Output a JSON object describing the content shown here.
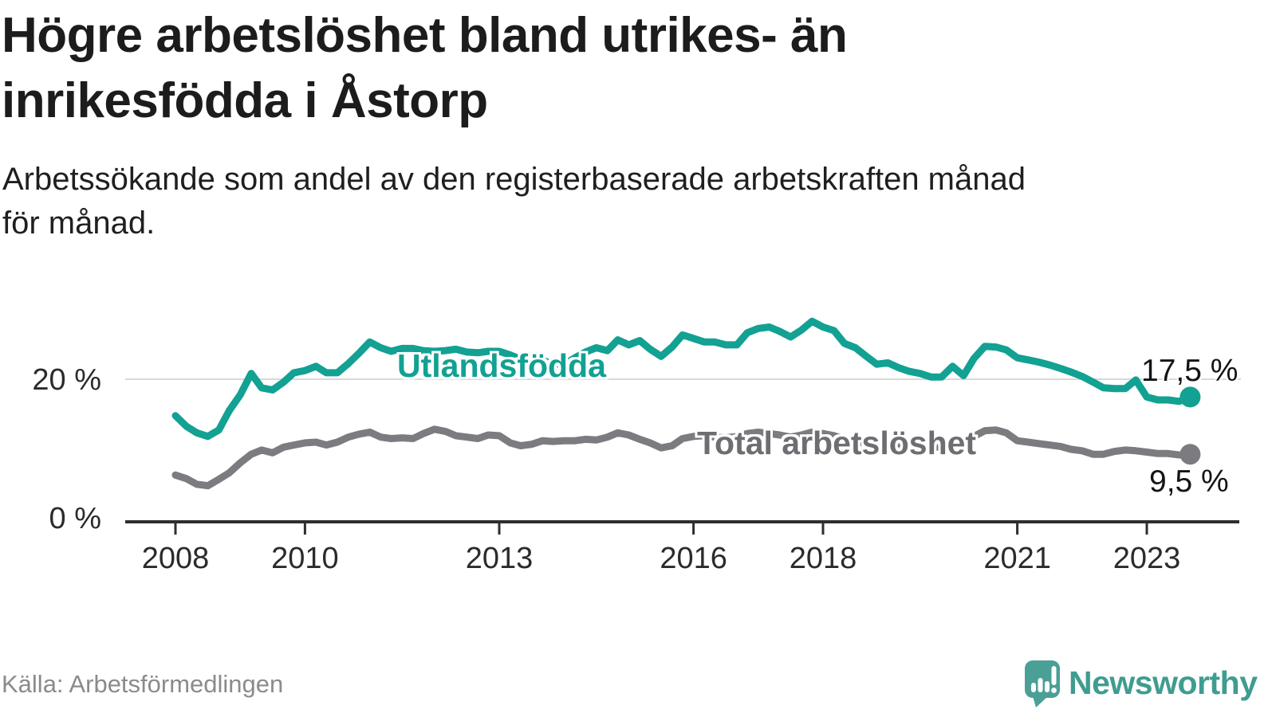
{
  "header": {
    "title_lines": [
      "Högre arbetslöshet bland utrikes- än",
      "inrikesfödda i Åstorp"
    ],
    "subtitle_lines": [
      "Arbetssökande som andel av den registerbaserade arbetskraften månad",
      "för månad."
    ]
  },
  "footer": {
    "source": "Källa: Arbetsförmedlingen",
    "brand": "Newsworthy"
  },
  "colors": {
    "accent_teal": "#12a192",
    "line_gray": "#7c7c80",
    "series_label_gray": "#6d6d72",
    "grid": "#d8d8d8",
    "axis": "#2e2e2e",
    "text_dark": "#1c1c1c",
    "source_gray": "#8b8b8b",
    "brand_teal": "#3f9c90",
    "brand_icon_teal": "#4aa096"
  },
  "chart_data": {
    "type": "line",
    "unit": "%",
    "grid": "single horizontal gridline at 20 %",
    "legend_position": "inline labels on lines, end-value labels at right",
    "x_axis": {
      "tick_years": [
        2008,
        2010,
        2013,
        2016,
        2018,
        2021,
        2023
      ],
      "tick_labels": [
        "2008",
        "2010",
        "2013",
        "2016",
        "2018",
        "2021",
        "2023"
      ],
      "start": 2008.0,
      "end": 2023.67
    },
    "y_axis": {
      "ticks": [
        20,
        0
      ],
      "tick_labels": [
        "20 %",
        "0 %"
      ],
      "range": [
        0,
        30
      ],
      "gridline_at": 20
    },
    "series": [
      {
        "name": "Utlandsfödda",
        "color": "#12a192",
        "end_value": 17.5,
        "end_label": "17,5 %",
        "points": [
          [
            2008.0,
            14.9
          ],
          [
            2008.17,
            13.4
          ],
          [
            2008.33,
            12.5
          ],
          [
            2008.5,
            12.0
          ],
          [
            2008.67,
            12.9
          ],
          [
            2008.83,
            15.6
          ],
          [
            2009.0,
            17.8
          ],
          [
            2009.17,
            20.8
          ],
          [
            2009.33,
            18.8
          ],
          [
            2009.5,
            18.5
          ],
          [
            2009.67,
            19.6
          ],
          [
            2009.83,
            20.9
          ],
          [
            2010.0,
            21.2
          ],
          [
            2010.17,
            21.8
          ],
          [
            2010.33,
            20.9
          ],
          [
            2010.5,
            20.9
          ],
          [
            2010.67,
            22.2
          ],
          [
            2010.83,
            23.6
          ],
          [
            2011.0,
            25.2
          ],
          [
            2011.17,
            24.4
          ],
          [
            2011.33,
            23.9
          ],
          [
            2011.5,
            24.3
          ],
          [
            2011.67,
            24.3
          ],
          [
            2011.83,
            24.0
          ],
          [
            2012.0,
            23.9
          ],
          [
            2012.17,
            24.0
          ],
          [
            2012.33,
            24.2
          ],
          [
            2012.5,
            23.8
          ],
          [
            2012.67,
            23.7
          ],
          [
            2012.83,
            23.9
          ],
          [
            2013.0,
            23.9
          ],
          [
            2013.17,
            23.4
          ],
          [
            2013.33,
            22.8
          ],
          [
            2013.5,
            23.3
          ],
          [
            2013.67,
            22.6
          ],
          [
            2013.83,
            22.2
          ],
          [
            2014.0,
            22.1
          ],
          [
            2014.17,
            23.0
          ],
          [
            2014.33,
            23.8
          ],
          [
            2014.5,
            24.4
          ],
          [
            2014.67,
            24.0
          ],
          [
            2014.83,
            25.5
          ],
          [
            2015.0,
            24.8
          ],
          [
            2015.17,
            25.4
          ],
          [
            2015.33,
            24.2
          ],
          [
            2015.5,
            23.2
          ],
          [
            2015.67,
            24.5
          ],
          [
            2015.83,
            26.2
          ],
          [
            2016.0,
            25.7
          ],
          [
            2016.17,
            25.2
          ],
          [
            2016.33,
            25.2
          ],
          [
            2016.5,
            24.8
          ],
          [
            2016.67,
            24.8
          ],
          [
            2016.83,
            26.5
          ],
          [
            2017.0,
            27.1
          ],
          [
            2017.17,
            27.3
          ],
          [
            2017.33,
            26.7
          ],
          [
            2017.5,
            25.9
          ],
          [
            2017.67,
            26.9
          ],
          [
            2017.83,
            28.1
          ],
          [
            2018.0,
            27.3
          ],
          [
            2018.17,
            26.8
          ],
          [
            2018.33,
            25.0
          ],
          [
            2018.5,
            24.4
          ],
          [
            2018.67,
            23.2
          ],
          [
            2018.83,
            22.1
          ],
          [
            2019.0,
            22.3
          ],
          [
            2019.17,
            21.6
          ],
          [
            2019.33,
            21.1
          ],
          [
            2019.5,
            20.8
          ],
          [
            2019.67,
            20.3
          ],
          [
            2019.83,
            20.3
          ],
          [
            2020.0,
            21.8
          ],
          [
            2020.17,
            20.5
          ],
          [
            2020.33,
            22.9
          ],
          [
            2020.5,
            24.6
          ],
          [
            2020.67,
            24.5
          ],
          [
            2020.83,
            24.1
          ],
          [
            2021.0,
            23.0
          ],
          [
            2021.17,
            22.7
          ],
          [
            2021.33,
            22.4
          ],
          [
            2021.5,
            22.0
          ],
          [
            2021.67,
            21.5
          ],
          [
            2021.83,
            21.0
          ],
          [
            2022.0,
            20.4
          ],
          [
            2022.17,
            19.6
          ],
          [
            2022.33,
            18.8
          ],
          [
            2022.5,
            18.7
          ],
          [
            2022.67,
            18.7
          ],
          [
            2022.83,
            19.9
          ],
          [
            2023.0,
            17.5
          ],
          [
            2023.17,
            17.1
          ],
          [
            2023.33,
            17.1
          ],
          [
            2023.5,
            16.9
          ],
          [
            2023.67,
            17.5
          ]
        ]
      },
      {
        "name": "Total arbetslöshet",
        "color": "#7c7c80",
        "end_value": 9.5,
        "end_label": "9,5 %",
        "points": [
          [
            2008.0,
            6.6
          ],
          [
            2008.17,
            6.1
          ],
          [
            2008.33,
            5.3
          ],
          [
            2008.5,
            5.1
          ],
          [
            2008.67,
            6.0
          ],
          [
            2008.83,
            6.9
          ],
          [
            2009.0,
            8.3
          ],
          [
            2009.17,
            9.5
          ],
          [
            2009.33,
            10.1
          ],
          [
            2009.5,
            9.7
          ],
          [
            2009.67,
            10.5
          ],
          [
            2009.83,
            10.8
          ],
          [
            2010.0,
            11.1
          ],
          [
            2010.17,
            11.2
          ],
          [
            2010.33,
            10.8
          ],
          [
            2010.5,
            11.2
          ],
          [
            2010.67,
            11.9
          ],
          [
            2010.83,
            12.3
          ],
          [
            2011.0,
            12.6
          ],
          [
            2011.17,
            11.9
          ],
          [
            2011.33,
            11.7
          ],
          [
            2011.5,
            11.8
          ],
          [
            2011.67,
            11.7
          ],
          [
            2011.83,
            12.4
          ],
          [
            2012.0,
            13.0
          ],
          [
            2012.17,
            12.7
          ],
          [
            2012.33,
            12.1
          ],
          [
            2012.5,
            11.9
          ],
          [
            2012.67,
            11.7
          ],
          [
            2012.83,
            12.2
          ],
          [
            2013.0,
            12.1
          ],
          [
            2013.17,
            11.1
          ],
          [
            2013.33,
            10.7
          ],
          [
            2013.5,
            10.9
          ],
          [
            2013.67,
            11.4
          ],
          [
            2013.83,
            11.3
          ],
          [
            2014.0,
            11.4
          ],
          [
            2014.17,
            11.4
          ],
          [
            2014.33,
            11.6
          ],
          [
            2014.5,
            11.5
          ],
          [
            2014.67,
            11.9
          ],
          [
            2014.83,
            12.5
          ],
          [
            2015.0,
            12.2
          ],
          [
            2015.17,
            11.6
          ],
          [
            2015.33,
            11.1
          ],
          [
            2015.5,
            10.4
          ],
          [
            2015.67,
            10.7
          ],
          [
            2015.83,
            11.7
          ],
          [
            2016.0,
            12.0
          ],
          [
            2016.17,
            12.1
          ],
          [
            2016.33,
            11.9
          ],
          [
            2016.5,
            11.8
          ],
          [
            2016.67,
            12.0
          ],
          [
            2016.83,
            12.4
          ],
          [
            2017.0,
            12.6
          ],
          [
            2017.17,
            12.4
          ],
          [
            2017.33,
            12.2
          ],
          [
            2017.5,
            11.9
          ],
          [
            2017.67,
            12.2
          ],
          [
            2017.83,
            12.6
          ],
          [
            2018.0,
            12.4
          ],
          [
            2018.17,
            12.1
          ],
          [
            2018.33,
            11.6
          ],
          [
            2018.5,
            11.3
          ],
          [
            2018.67,
            11.0
          ],
          [
            2018.83,
            10.8
          ],
          [
            2019.0,
            10.9
          ],
          [
            2019.17,
            10.7
          ],
          [
            2019.33,
            10.5
          ],
          [
            2019.5,
            10.6
          ],
          [
            2019.67,
            10.4
          ],
          [
            2019.83,
            10.6
          ],
          [
            2020.0,
            10.9
          ],
          [
            2020.17,
            10.8
          ],
          [
            2020.33,
            12.0
          ],
          [
            2020.5,
            12.8
          ],
          [
            2020.67,
            12.9
          ],
          [
            2020.83,
            12.5
          ],
          [
            2021.0,
            11.4
          ],
          [
            2021.17,
            11.2
          ],
          [
            2021.33,
            11.0
          ],
          [
            2021.5,
            10.8
          ],
          [
            2021.67,
            10.6
          ],
          [
            2021.83,
            10.2
          ],
          [
            2022.0,
            10.0
          ],
          [
            2022.17,
            9.5
          ],
          [
            2022.33,
            9.5
          ],
          [
            2022.5,
            9.9
          ],
          [
            2022.67,
            10.1
          ],
          [
            2022.83,
            10.0
          ],
          [
            2023.0,
            9.8
          ],
          [
            2023.17,
            9.6
          ],
          [
            2023.33,
            9.6
          ],
          [
            2023.5,
            9.4
          ],
          [
            2023.67,
            9.5
          ]
        ]
      }
    ]
  }
}
